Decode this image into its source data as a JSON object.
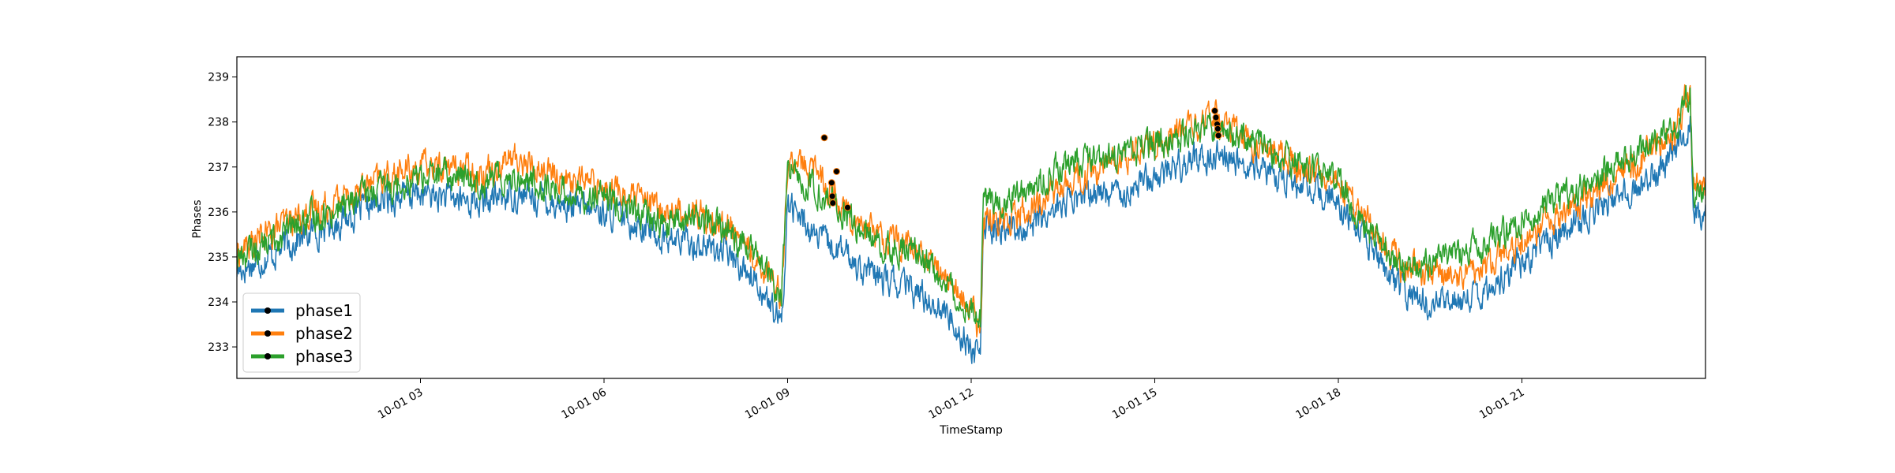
{
  "chart_data": {
    "type": "line",
    "title": "",
    "xlabel": "TimeStamp",
    "ylabel": "Phases",
    "x_unit": "hours after 10-01 00:00",
    "xlim": [
      0,
      24
    ],
    "ylim": [
      232.3,
      239.45
    ],
    "y_ticks": [
      {
        "value": 233,
        "label": "233"
      },
      {
        "value": 234,
        "label": "234"
      },
      {
        "value": 235,
        "label": "235"
      },
      {
        "value": 236,
        "label": "236"
      },
      {
        "value": 237,
        "label": "237"
      },
      {
        "value": 238,
        "label": "238"
      },
      {
        "value": 239,
        "label": "239"
      }
    ],
    "x_ticks": [
      {
        "value": 3,
        "label": "10-01 03"
      },
      {
        "value": 6,
        "label": "10-01 06"
      },
      {
        "value": 9,
        "label": "10-01 09"
      },
      {
        "value": 12,
        "label": "10-01 12"
      },
      {
        "value": 15,
        "label": "10-01 15"
      },
      {
        "value": 18,
        "label": "10-01 18"
      },
      {
        "value": 21,
        "label": "10-01 21"
      }
    ],
    "grid": false,
    "legend_position": "lower-left",
    "legend_marker": "black dot",
    "series": [
      {
        "name": "phase1",
        "color": "#1f77b4",
        "x": [
          0,
          0.5,
          1,
          1.5,
          2,
          2.5,
          3,
          3.5,
          4,
          4.5,
          5,
          5.5,
          6,
          6.5,
          7,
          7.5,
          8,
          8.5,
          8.9,
          9.0,
          9.5,
          10,
          10.5,
          11,
          11.5,
          12,
          12.15,
          12.2,
          12.5,
          13,
          13.5,
          14,
          14.5,
          15,
          15.5,
          16,
          16.5,
          17,
          17.5,
          18,
          18.5,
          19,
          19.5,
          20,
          20.5,
          21,
          21.5,
          22,
          22.5,
          23,
          23.5,
          23.75,
          23.8,
          24
        ],
        "y": [
          234.7,
          235.0,
          235.4,
          235.7,
          236.0,
          236.3,
          236.4,
          236.3,
          236.2,
          236.4,
          236.3,
          236.1,
          236.0,
          235.8,
          235.4,
          235.3,
          235.1,
          234.5,
          233.4,
          236.2,
          235.4,
          235.0,
          234.5,
          234.3,
          233.9,
          233.0,
          232.7,
          235.6,
          235.6,
          235.7,
          236.2,
          236.4,
          236.5,
          236.8,
          237.1,
          237.3,
          237.0,
          236.8,
          236.5,
          236.2,
          235.2,
          234.3,
          233.9,
          234.0,
          234.4,
          234.9,
          235.4,
          235.9,
          236.3,
          236.7,
          237.3,
          238.0,
          235.8,
          235.9
        ]
      },
      {
        "name": "phase2",
        "color": "#ff7f0e",
        "x": [
          0,
          0.5,
          1,
          1.5,
          2,
          2.5,
          3,
          3.5,
          4,
          4.5,
          5,
          5.5,
          6,
          6.5,
          7,
          7.5,
          8,
          8.5,
          8.9,
          9.0,
          9.5,
          10,
          10.5,
          11,
          11.5,
          12,
          12.15,
          12.2,
          12.5,
          13,
          13.5,
          14,
          14.5,
          15,
          15.5,
          16,
          16.5,
          17,
          17.5,
          18,
          18.5,
          19,
          19.5,
          20,
          20.5,
          21,
          21.5,
          22,
          22.5,
          23,
          23.5,
          23.75,
          23.8,
          24
        ],
        "y": [
          235.1,
          235.5,
          235.9,
          236.2,
          236.5,
          236.8,
          237.0,
          237.0,
          236.9,
          237.2,
          236.9,
          236.7,
          236.6,
          236.3,
          236.0,
          236.0,
          235.7,
          235.0,
          234.2,
          237.1,
          236.9,
          236.0,
          235.5,
          235.2,
          234.7,
          233.8,
          233.3,
          235.8,
          235.9,
          236.1,
          236.6,
          236.9,
          237.2,
          237.5,
          237.8,
          238.1,
          237.6,
          237.3,
          236.9,
          236.6,
          235.8,
          234.8,
          234.6,
          234.6,
          234.8,
          235.3,
          235.8,
          236.3,
          236.8,
          237.2,
          237.8,
          238.9,
          236.5,
          236.5
        ]
      },
      {
        "name": "phase3",
        "color": "#2ca02c",
        "x": [
          0,
          0.5,
          1,
          1.5,
          2,
          2.5,
          3,
          3.5,
          4,
          4.5,
          5,
          5.5,
          6,
          6.5,
          7,
          7.5,
          8,
          8.5,
          8.9,
          9.0,
          9.5,
          10,
          10.5,
          11,
          11.5,
          12,
          12.15,
          12.2,
          12.5,
          13,
          13.5,
          14,
          14.5,
          15,
          15.5,
          16,
          16.5,
          17,
          17.5,
          18,
          18.5,
          19,
          19.5,
          20,
          20.5,
          21,
          21.5,
          22,
          22.5,
          23,
          23.5,
          23.75,
          23.8,
          24
        ],
        "y": [
          235.0,
          235.3,
          235.7,
          236.0,
          236.3,
          236.6,
          236.8,
          236.8,
          236.7,
          236.8,
          236.6,
          236.4,
          236.3,
          236.0,
          235.7,
          235.9,
          235.6,
          235.0,
          234.1,
          236.9,
          236.5,
          235.8,
          235.3,
          235.1,
          234.6,
          233.9,
          233.6,
          236.2,
          236.3,
          236.6,
          237.0,
          237.2,
          237.3,
          237.5,
          237.7,
          237.9,
          237.6,
          237.3,
          237.0,
          236.6,
          235.6,
          234.9,
          234.8,
          235.1,
          235.4,
          235.8,
          236.2,
          236.6,
          237.0,
          237.4,
          237.9,
          238.6,
          236.2,
          236.3
        ]
      }
    ],
    "marked_points": [
      {
        "x": 9.6,
        "y": 237.65
      },
      {
        "x": 9.72,
        "y": 236.65
      },
      {
        "x": 9.73,
        "y": 236.35
      },
      {
        "x": 9.74,
        "y": 236.2
      },
      {
        "x": 9.8,
        "y": 236.9
      },
      {
        "x": 9.98,
        "y": 236.1
      },
      {
        "x": 15.98,
        "y": 238.25
      },
      {
        "x": 16.0,
        "y": 238.1
      },
      {
        "x": 16.02,
        "y": 237.95
      },
      {
        "x": 16.03,
        "y": 237.85
      },
      {
        "x": 16.04,
        "y": 237.7
      }
    ]
  }
}
